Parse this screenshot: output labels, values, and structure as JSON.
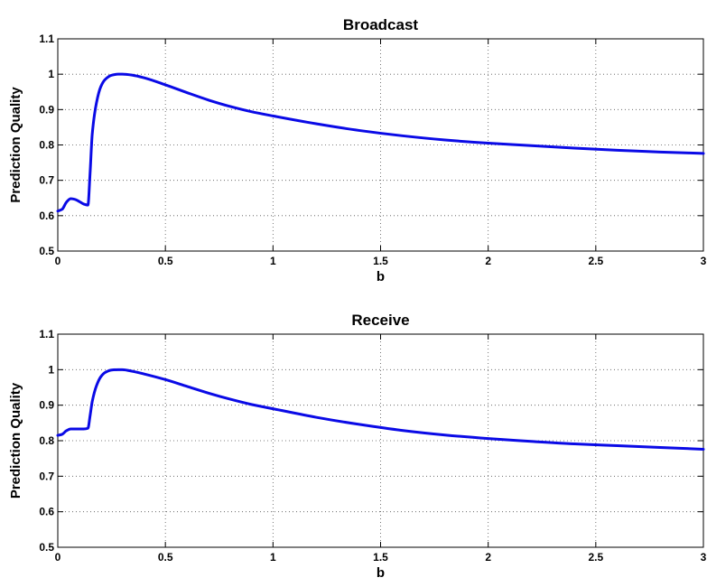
{
  "chart_data": [
    {
      "type": "line",
      "title": "Broadcast",
      "xlabel": "b",
      "ylabel": "Prediction Quality",
      "xlim": [
        0,
        3
      ],
      "ylim": [
        0.5,
        1.1
      ],
      "xticks": [
        0,
        0.5,
        1,
        1.5,
        2,
        2.5,
        3
      ],
      "xtick_labels": [
        "0",
        "0.5",
        "1",
        "1.5",
        "2",
        "2.5",
        "3"
      ],
      "yticks": [
        0.5,
        0.6,
        0.7,
        0.8,
        0.9,
        1.0,
        1.1
      ],
      "ytick_labels": [
        "0.5",
        "0.6",
        "0.7",
        "0.8",
        "0.9",
        "1",
        "1.1"
      ],
      "grid": true,
      "color": "#0a0ae6",
      "series": [
        {
          "x": [
            0,
            0.02,
            0.04,
            0.06,
            0.08,
            0.1,
            0.12,
            0.14,
            0.15,
            0.16,
            0.18,
            0.2,
            0.22,
            0.25,
            0.28,
            0.3,
            0.35,
            0.4,
            0.5,
            0.6,
            0.7,
            0.8,
            0.9,
            1.0,
            1.2,
            1.4,
            1.6,
            1.8,
            2.0,
            2.2,
            2.4,
            2.6,
            2.8,
            3.0
          ],
          "y": [
            0.613,
            0.618,
            0.638,
            0.648,
            0.646,
            0.64,
            0.633,
            0.63,
            0.72,
            0.83,
            0.92,
            0.965,
            0.985,
            0.997,
            1.0,
            1.0,
            0.997,
            0.99,
            0.97,
            0.948,
            0.927,
            0.909,
            0.894,
            0.882,
            0.86,
            0.841,
            0.826,
            0.814,
            0.805,
            0.798,
            0.791,
            0.785,
            0.78,
            0.776
          ]
        }
      ]
    },
    {
      "type": "line",
      "title": "Receive",
      "xlabel": "b",
      "ylabel": "Prediction Quality",
      "xlim": [
        0,
        3
      ],
      "ylim": [
        0.5,
        1.1
      ],
      "xticks": [
        0,
        0.5,
        1,
        1.5,
        2,
        2.5,
        3
      ],
      "xtick_labels": [
        "0",
        "0.5",
        "1",
        "1.5",
        "2",
        "2.5",
        "3"
      ],
      "yticks": [
        0.5,
        0.6,
        0.7,
        0.8,
        0.9,
        1.0,
        1.1
      ],
      "ytick_labels": [
        "0.5",
        "0.6",
        "0.7",
        "0.8",
        "0.9",
        "1",
        "1.1"
      ],
      "grid": true,
      "color": "#0a0ae6",
      "series": [
        {
          "x": [
            0,
            0.02,
            0.04,
            0.06,
            0.08,
            0.1,
            0.12,
            0.14,
            0.15,
            0.16,
            0.18,
            0.2,
            0.22,
            0.25,
            0.28,
            0.3,
            0.35,
            0.4,
            0.5,
            0.6,
            0.7,
            0.8,
            0.9,
            1.0,
            1.2,
            1.4,
            1.6,
            1.8,
            2.0,
            2.2,
            2.4,
            2.6,
            2.8,
            3.0
          ],
          "y": [
            0.815,
            0.818,
            0.828,
            0.833,
            0.833,
            0.833,
            0.833,
            0.835,
            0.87,
            0.91,
            0.955,
            0.98,
            0.992,
            0.999,
            1.0,
            1.0,
            0.995,
            0.988,
            0.972,
            0.953,
            0.934,
            0.917,
            0.902,
            0.89,
            0.866,
            0.846,
            0.829,
            0.816,
            0.806,
            0.798,
            0.791,
            0.786,
            0.781,
            0.776
          ]
        }
      ]
    }
  ]
}
